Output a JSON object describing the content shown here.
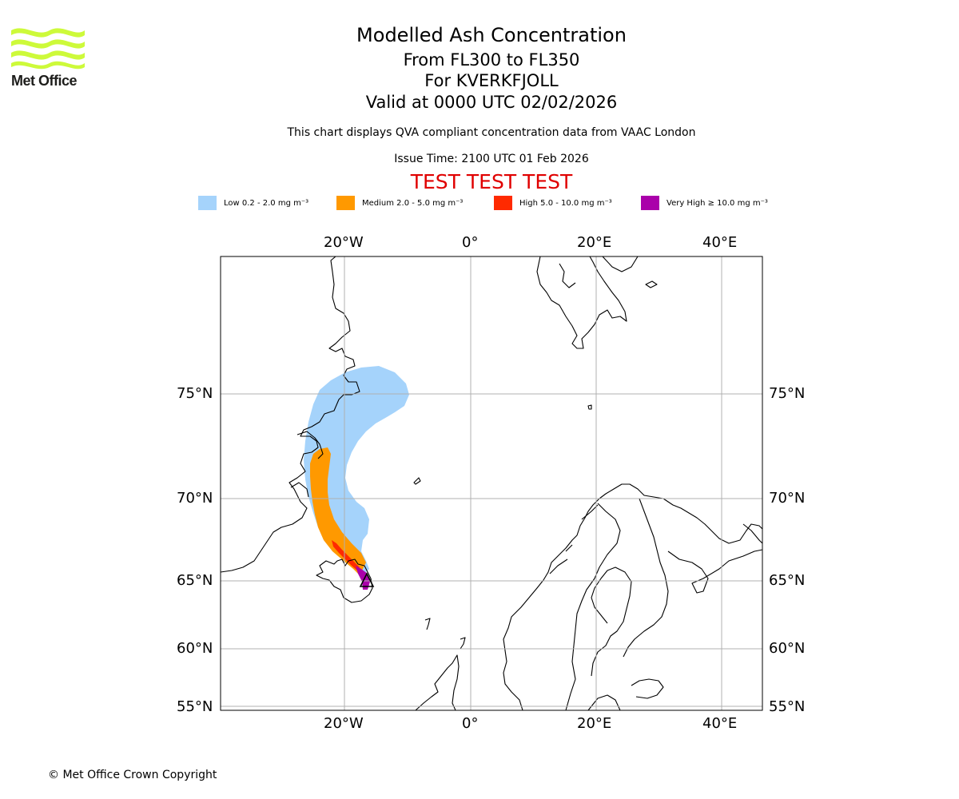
{
  "logo": {
    "text": "Met Office",
    "colors": {
      "waves": "#cdfa3a",
      "text": "#1d1d1b"
    }
  },
  "header": {
    "title": "Modelled Ash Concentration",
    "flight_levels": "From FL300 to FL350",
    "volcano": "For KVERKFJOLL",
    "valid_time": "Valid at 0000 UTC 02/02/2026",
    "description": "This chart displays QVA compliant concentration data from VAAC London",
    "issue_time": "Issue Time: 2100 UTC 01 Feb 2026",
    "test_banner": "TEST TEST TEST"
  },
  "legend": {
    "items": [
      {
        "label": "Low 0.2 - 2.0 mg m⁻³",
        "color": "#a5d3fb"
      },
      {
        "label": "Medium 2.0 - 5.0 mg m⁻³",
        "color": "#ff9900"
      },
      {
        "label": "High 5.0 - 10.0 mg m⁻³",
        "color": "#ff2a00"
      },
      {
        "label": "Very High  ≥  10.0 mg m⁻³",
        "color": "#aa00aa"
      }
    ]
  },
  "map": {
    "lon_labels": [
      "20°W",
      "0°",
      "20°E",
      "40°E"
    ],
    "lat_labels": [
      "75°N",
      "70°N",
      "65°N",
      "60°N",
      "55°N"
    ],
    "source_marker": "volcano-triangle",
    "colors": {
      "coast": "#000000",
      "grid": "#b0b0b0",
      "frame": "#000000"
    }
  },
  "footer": {
    "copyright": "© Met Office Crown Copyright"
  }
}
